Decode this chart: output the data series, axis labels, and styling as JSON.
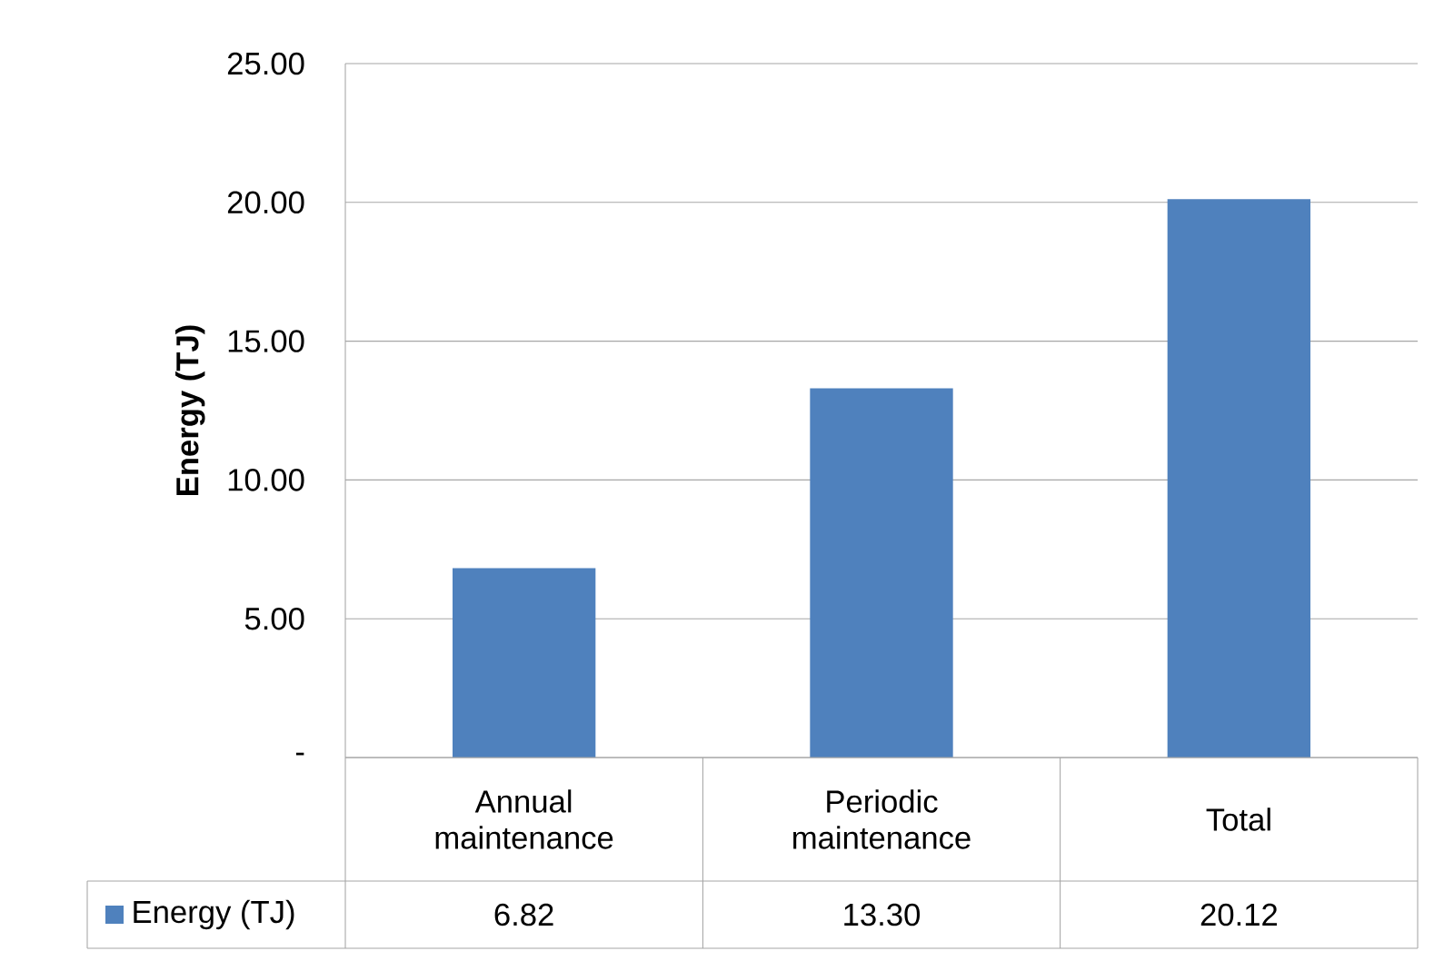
{
  "chart_data": {
    "type": "bar",
    "ylabel": "Energy (TJ)",
    "categories": [
      "Annual maintenance",
      "Periodic maintenance",
      "Total"
    ],
    "series": [
      {
        "name": "Energy (TJ)",
        "color": "#4f81bd",
        "values": [
          6.82,
          13.3,
          20.12
        ],
        "value_labels": [
          "6.82",
          "13.30",
          "20.12"
        ]
      }
    ],
    "ylim": [
      0,
      25
    ],
    "yticks": [
      {
        "value": 0,
        "label": "-"
      },
      {
        "value": 5,
        "label": "5.00"
      },
      {
        "value": 10,
        "label": "10.00"
      },
      {
        "value": 15,
        "label": "15.00"
      },
      {
        "value": 20,
        "label": "20.00"
      },
      {
        "value": 25,
        "label": "25.00"
      }
    ],
    "grid": "y",
    "legend": "bottom"
  }
}
